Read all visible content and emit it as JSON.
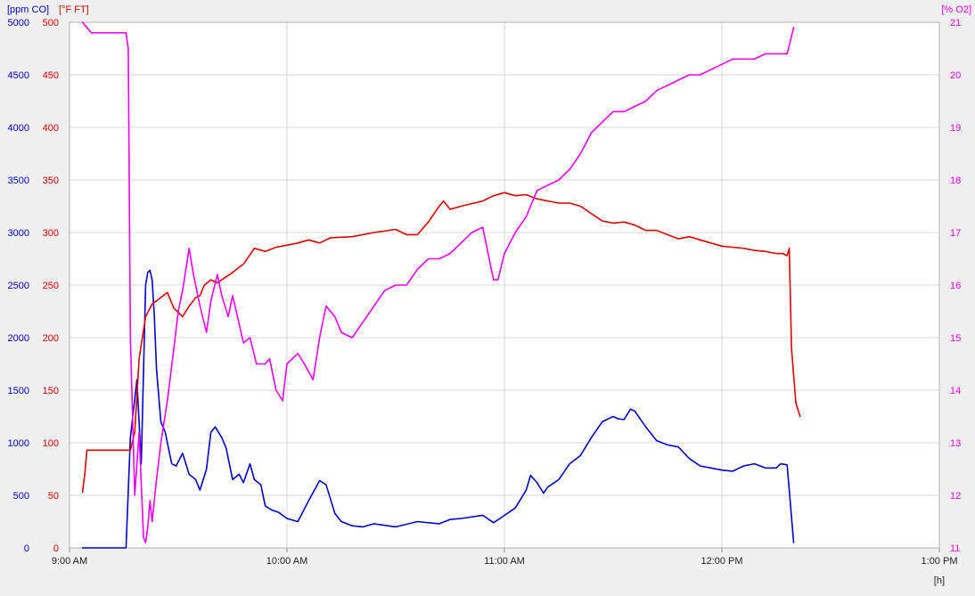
{
  "colors": {
    "co": "#0000cc",
    "ft": "#dd0000",
    "o2": "#ee00ee",
    "grid": "#d9d9d9",
    "axis_text": "#222222",
    "plot_bg": "#ffffff"
  },
  "chart_data": {
    "type": "line",
    "x_unit_label": "[h]",
    "x_ticks": [
      "9:00 AM",
      "10:00 AM",
      "11:00 AM",
      "12:00 PM",
      "1:00 PM"
    ],
    "xlim_hours": [
      9.0,
      13.0
    ],
    "axes": {
      "co": {
        "label": "[ppm CO]",
        "ylim": [
          0,
          5000
        ],
        "ticks": [
          0,
          500,
          1000,
          1500,
          2000,
          2500,
          3000,
          3500,
          4000,
          4500,
          5000
        ],
        "side": "left-outer"
      },
      "ft": {
        "label": "[°F FT]",
        "ylim": [
          0,
          500
        ],
        "ticks": [
          0,
          50,
          100,
          150,
          200,
          250,
          300,
          350,
          400,
          450,
          500
        ],
        "side": "left-inner"
      },
      "o2": {
        "label": "[% O2]",
        "ylim": [
          11,
          21
        ],
        "ticks": [
          11,
          12,
          13,
          14,
          15,
          16,
          17,
          18,
          19,
          20,
          21
        ],
        "side": "right"
      }
    },
    "grid": true,
    "series": [
      {
        "name": "ppm CO",
        "axis": "co",
        "x": [
          9.06,
          9.2,
          9.26,
          9.28,
          9.31,
          9.33,
          9.35,
          9.36,
          9.37,
          9.38,
          9.39,
          9.4,
          9.42,
          9.44,
          9.47,
          9.49,
          9.52,
          9.55,
          9.58,
          9.6,
          9.63,
          9.65,
          9.67,
          9.7,
          9.72,
          9.75,
          9.78,
          9.8,
          9.83,
          9.85,
          9.88,
          9.9,
          9.93,
          9.96,
          9.98,
          10.0,
          10.05,
          10.1,
          10.15,
          10.18,
          10.22,
          10.25,
          10.3,
          10.35,
          10.4,
          10.5,
          10.6,
          10.7,
          10.75,
          10.8,
          10.9,
          10.95,
          10.98,
          11.0,
          11.05,
          11.1,
          11.12,
          11.15,
          11.18,
          11.2,
          11.25,
          11.3,
          11.35,
          11.4,
          11.45,
          11.5,
          11.52,
          11.55,
          11.58,
          11.6,
          11.65,
          11.7,
          11.75,
          11.8,
          11.85,
          11.9,
          11.95,
          12.0,
          12.05,
          12.1,
          12.15,
          12.2,
          12.25,
          12.27,
          12.3,
          12.33
        ],
        "y": [
          0,
          0,
          0,
          1050,
          1600,
          800,
          2500,
          2620,
          2640,
          2550,
          2200,
          1700,
          1200,
          1100,
          800,
          780,
          900,
          700,
          650,
          550,
          750,
          1100,
          1150,
          1050,
          950,
          650,
          700,
          620,
          800,
          650,
          600,
          400,
          360,
          340,
          310,
          280,
          250,
          450,
          640,
          600,
          330,
          250,
          210,
          200,
          230,
          200,
          250,
          230,
          270,
          280,
          310,
          240,
          280,
          310,
          380,
          550,
          690,
          620,
          520,
          580,
          650,
          800,
          880,
          1050,
          1200,
          1250,
          1230,
          1220,
          1320,
          1300,
          1150,
          1020,
          980,
          960,
          850,
          780,
          760,
          740,
          730,
          780,
          800,
          760,
          760,
          800,
          790,
          50
        ]
      },
      {
        "name": "°F FT",
        "axis": "ft",
        "x": [
          9.06,
          9.07,
          9.08,
          9.15,
          9.2,
          9.26,
          9.28,
          9.3,
          9.32,
          9.35,
          9.38,
          9.4,
          9.45,
          9.48,
          9.52,
          9.55,
          9.58,
          9.6,
          9.62,
          9.65,
          9.68,
          9.7,
          9.75,
          9.8,
          9.85,
          9.9,
          9.95,
          10.0,
          10.05,
          10.1,
          10.15,
          10.2,
          10.3,
          10.4,
          10.5,
          10.55,
          10.6,
          10.65,
          10.7,
          10.72,
          10.75,
          10.8,
          10.9,
          10.95,
          11.0,
          11.05,
          11.1,
          11.15,
          11.2,
          11.25,
          11.3,
          11.35,
          11.4,
          11.45,
          11.5,
          11.55,
          11.6,
          11.65,
          11.7,
          11.75,
          11.8,
          11.85,
          11.9,
          11.95,
          12.0,
          12.05,
          12.1,
          12.15,
          12.2,
          12.25,
          12.28,
          12.3,
          12.31,
          12.32,
          12.34,
          12.36
        ],
        "y": [
          53,
          70,
          93,
          93,
          93,
          93,
          93,
          110,
          180,
          220,
          232,
          235,
          243,
          228,
          220,
          230,
          238,
          240,
          250,
          255,
          252,
          255,
          262,
          270,
          285,
          282,
          286,
          288,
          290,
          293,
          290,
          295,
          296,
          300,
          303,
          298,
          298,
          310,
          325,
          330,
          322,
          325,
          330,
          335,
          338,
          335,
          336,
          332,
          330,
          328,
          328,
          325,
          318,
          311,
          309,
          310,
          307,
          302,
          302,
          298,
          294,
          296,
          293,
          290,
          287,
          286,
          285,
          283,
          282,
          280,
          280,
          278,
          285,
          190,
          138,
          125
        ]
      },
      {
        "name": "% O2",
        "axis": "o2",
        "x": [
          9.06,
          9.08,
          9.1,
          9.15,
          9.2,
          9.26,
          9.27,
          9.28,
          9.3,
          9.32,
          9.34,
          9.35,
          9.36,
          9.37,
          9.38,
          9.4,
          9.42,
          9.45,
          9.48,
          9.5,
          9.52,
          9.55,
          9.57,
          9.6,
          9.63,
          9.65,
          9.68,
          9.7,
          9.73,
          9.75,
          9.8,
          9.83,
          9.86,
          9.9,
          9.92,
          9.95,
          9.98,
          10.0,
          10.05,
          10.08,
          10.12,
          10.15,
          10.18,
          10.22,
          10.25,
          10.3,
          10.35,
          10.4,
          10.45,
          10.5,
          10.55,
          10.6,
          10.65,
          10.7,
          10.75,
          10.8,
          10.85,
          10.9,
          10.92,
          10.95,
          10.97,
          11.0,
          11.05,
          11.1,
          11.15,
          11.2,
          11.25,
          11.3,
          11.35,
          11.4,
          11.45,
          11.5,
          11.55,
          11.6,
          11.65,
          11.7,
          11.75,
          11.8,
          11.85,
          11.9,
          11.95,
          12.0,
          12.05,
          12.1,
          12.15,
          12.2,
          12.25,
          12.3,
          12.33
        ],
        "y": [
          21.0,
          20.9,
          20.8,
          20.8,
          20.8,
          20.8,
          20.5,
          15.0,
          12.0,
          13.2,
          11.2,
          11.1,
          11.4,
          11.9,
          11.5,
          12.3,
          13.0,
          13.8,
          14.8,
          15.5,
          15.9,
          16.7,
          16.2,
          15.6,
          15.1,
          15.7,
          16.2,
          15.8,
          15.4,
          15.8,
          14.9,
          15.0,
          14.5,
          14.5,
          14.6,
          14.0,
          13.8,
          14.5,
          14.7,
          14.5,
          14.2,
          15.0,
          15.6,
          15.4,
          15.1,
          15.0,
          15.3,
          15.6,
          15.9,
          16.0,
          16.0,
          16.3,
          16.5,
          16.5,
          16.6,
          16.8,
          17.0,
          17.1,
          16.7,
          16.1,
          16.1,
          16.6,
          17.0,
          17.3,
          17.8,
          17.9,
          18.0,
          18.2,
          18.5,
          18.9,
          19.1,
          19.3,
          19.3,
          19.4,
          19.5,
          19.7,
          19.8,
          19.9,
          20.0,
          20.0,
          20.1,
          20.2,
          20.3,
          20.3,
          20.3,
          20.4,
          20.4,
          20.4,
          20.9
        ]
      }
    ]
  }
}
